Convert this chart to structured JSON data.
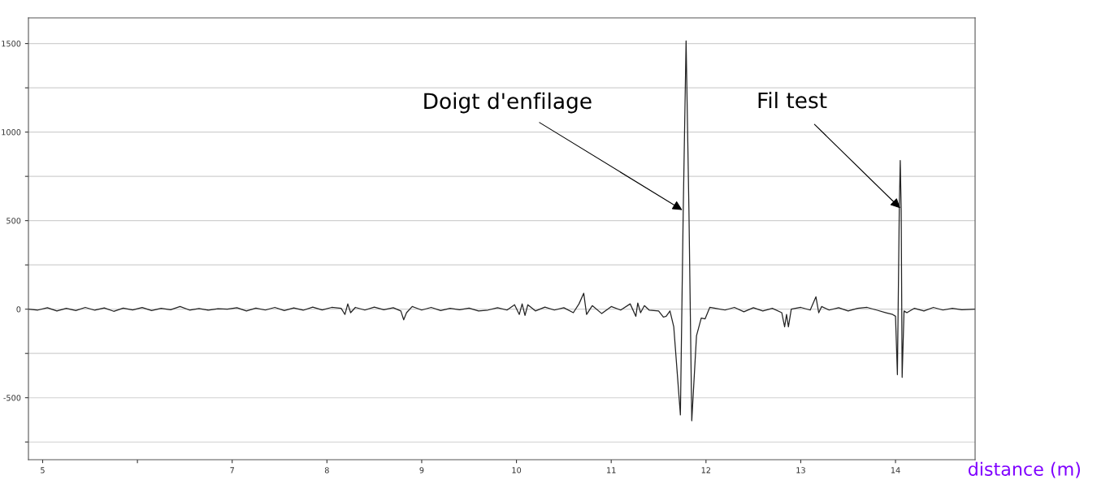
{
  "chart_data": {
    "type": "line",
    "xlabel": "distance (m)",
    "xlim": [
      4.85,
      14.84
    ],
    "ylim": [
      -850,
      1645
    ],
    "xticks": [
      5,
      {
        "value": 6,
        "label": null
      },
      7,
      8,
      9,
      10,
      11,
      12,
      13,
      14
    ],
    "yticks": [
      {
        "value": -750,
        "label": null
      },
      -500,
      {
        "value": -250,
        "label": null
      },
      0,
      {
        "value": 250,
        "label": null
      },
      500,
      {
        "value": 750,
        "label": null
      },
      1000,
      {
        "value": 1250,
        "label": null
      },
      1500
    ],
    "grid": "y",
    "marker": "none",
    "line_style": "solid",
    "series": [
      {
        "color": "#222222",
        "x": [
          4.85,
          4.95,
          5.05,
          5.15,
          5.25,
          5.35,
          5.45,
          5.55,
          5.65,
          5.75,
          5.85,
          5.95,
          6.05,
          6.15,
          6.25,
          6.35,
          6.45,
          6.55,
          6.65,
          6.75,
          6.85,
          6.95,
          7.05,
          7.15,
          7.25,
          7.35,
          7.45,
          7.55,
          7.65,
          7.75,
          7.85,
          7.95,
          8.05,
          8.15,
          8.19,
          8.22,
          8.25,
          8.3,
          8.4,
          8.5,
          8.6,
          8.7,
          8.78,
          8.81,
          8.84,
          8.9,
          9.0,
          9.1,
          9.2,
          9.3,
          9.4,
          9.5,
          9.6,
          9.7,
          9.8,
          9.9,
          9.98,
          10.03,
          10.06,
          10.09,
          10.12,
          10.2,
          10.3,
          10.4,
          10.5,
          10.6,
          10.66,
          10.71,
          10.74,
          10.8,
          10.9,
          11.0,
          11.1,
          11.2,
          11.26,
          11.28,
          11.31,
          11.35,
          11.4,
          11.5,
          11.55,
          11.58,
          11.62,
          11.66,
          11.73,
          11.76,
          11.79,
          11.82,
          11.85,
          11.9,
          11.95,
          11.99,
          12.04,
          12.1,
          12.2,
          12.3,
          12.4,
          12.5,
          12.6,
          12.7,
          12.8,
          12.83,
          12.85,
          12.87,
          12.9,
          13.0,
          13.1,
          13.16,
          13.19,
          13.22,
          13.3,
          13.4,
          13.5,
          13.6,
          13.7,
          13.8,
          13.9,
          13.97,
          14.0,
          14.02,
          14.04,
          14.05,
          14.06,
          14.07,
          14.09,
          14.12,
          14.2,
          14.3,
          14.4,
          14.5,
          14.6,
          14.7,
          14.84
        ],
        "values": [
          0,
          -5,
          8,
          -10,
          5,
          -8,
          10,
          -6,
          7,
          -12,
          6,
          -4,
          9,
          -8,
          5,
          -3,
          15,
          -5,
          4,
          -6,
          3,
          0,
          8,
          -10,
          6,
          -5,
          10,
          -8,
          7,
          -6,
          12,
          -4,
          10,
          5,
          -30,
          30,
          -20,
          10,
          -5,
          12,
          -3,
          8,
          -10,
          -60,
          -20,
          15,
          -5,
          10,
          -8,
          5,
          -3,
          6,
          -10,
          -5,
          8,
          -5,
          25,
          -30,
          30,
          -35,
          25,
          -10,
          12,
          -5,
          8,
          -20,
          30,
          90,
          -30,
          20,
          -25,
          15,
          -5,
          30,
          -40,
          35,
          -20,
          20,
          -5,
          -10,
          -45,
          -40,
          -10,
          -100,
          -597,
          560,
          1515,
          560,
          -630,
          -150,
          -50,
          -55,
          10,
          5,
          -5,
          10,
          -15,
          8,
          -10,
          5,
          -20,
          -100,
          -30,
          -100,
          0,
          10,
          -5,
          70,
          -20,
          15,
          -5,
          8,
          -10,
          5,
          10,
          -5,
          -20,
          -30,
          -40,
          -370,
          570,
          840,
          560,
          -385,
          -10,
          -20,
          5,
          -10,
          10,
          -5,
          5,
          -3,
          0
        ]
      }
    ],
    "annotations": [
      {
        "text": "Doigt d'enfilage",
        "x": 11.75,
        "y": 560
      },
      {
        "text": "Fil test",
        "x": 14.05,
        "y": 570
      }
    ]
  }
}
